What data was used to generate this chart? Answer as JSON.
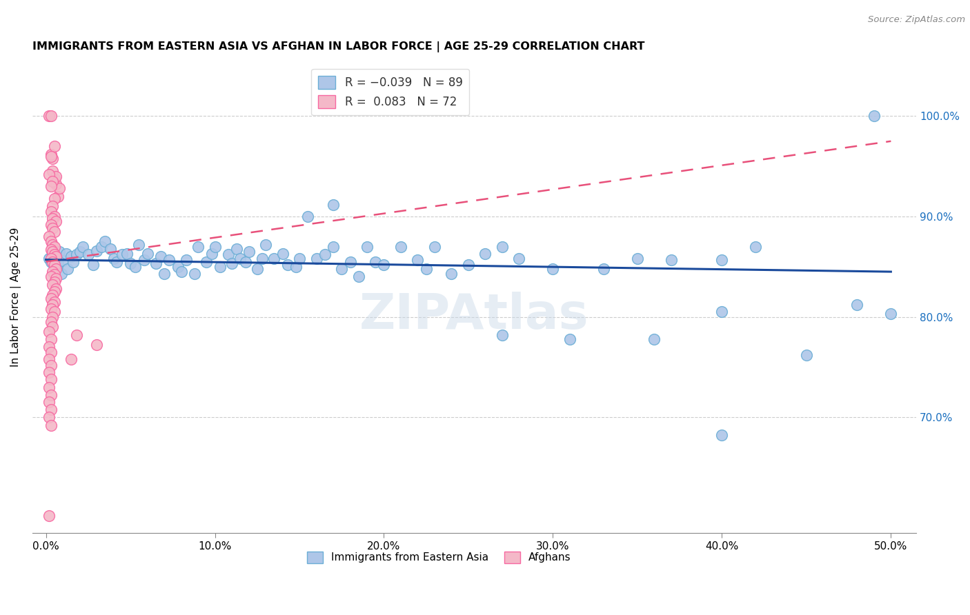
{
  "title": "IMMIGRANTS FROM EASTERN ASIA VS AFGHAN IN LABOR FORCE | AGE 25-29 CORRELATION CHART",
  "source": "Source: ZipAtlas.com",
  "ylabel": "In Labor Force | Age 25-29",
  "xlabel_ticks": [
    "0.0%",
    "10.0%",
    "20.0%",
    "30.0%",
    "40.0%",
    "50.0%"
  ],
  "xlabel_vals": [
    0.0,
    0.1,
    0.2,
    0.3,
    0.4,
    0.5
  ],
  "ylabel_ticks": [
    "70.0%",
    "80.0%",
    "90.0%",
    "100.0%"
  ],
  "ylabel_vals": [
    0.7,
    0.8,
    0.9,
    1.0
  ],
  "xlim": [
    -0.008,
    0.515
  ],
  "ylim": [
    0.585,
    1.055
  ],
  "blue_color": "#6baed6",
  "pink_color": "#f768a1",
  "blue_fill": "#aec6e8",
  "pink_fill": "#f4b8c8",
  "trend_blue_color": "#1a4a9c",
  "trend_pink_color": "#e8507a",
  "watermark": "ZIPAtlas",
  "blue_points": [
    [
      0.002,
      0.858
    ],
    [
      0.003,
      0.855
    ],
    [
      0.004,
      0.862
    ],
    [
      0.005,
      0.85
    ],
    [
      0.006,
      0.858
    ],
    [
      0.007,
      0.853
    ],
    [
      0.008,
      0.865
    ],
    [
      0.009,
      0.843
    ],
    [
      0.01,
      0.856
    ],
    [
      0.012,
      0.863
    ],
    [
      0.013,
      0.848
    ],
    [
      0.015,
      0.86
    ],
    [
      0.016,
      0.855
    ],
    [
      0.018,
      0.862
    ],
    [
      0.02,
      0.865
    ],
    [
      0.022,
      0.87
    ],
    [
      0.025,
      0.862
    ],
    [
      0.028,
      0.852
    ],
    [
      0.03,
      0.866
    ],
    [
      0.033,
      0.87
    ],
    [
      0.035,
      0.875
    ],
    [
      0.038,
      0.868
    ],
    [
      0.04,
      0.858
    ],
    [
      0.042,
      0.855
    ],
    [
      0.045,
      0.862
    ],
    [
      0.048,
      0.863
    ],
    [
      0.05,
      0.853
    ],
    [
      0.053,
      0.85
    ],
    [
      0.055,
      0.872
    ],
    [
      0.058,
      0.857
    ],
    [
      0.06,
      0.863
    ],
    [
      0.065,
      0.853
    ],
    [
      0.068,
      0.86
    ],
    [
      0.07,
      0.843
    ],
    [
      0.073,
      0.857
    ],
    [
      0.078,
      0.85
    ],
    [
      0.08,
      0.845
    ],
    [
      0.083,
      0.857
    ],
    [
      0.088,
      0.843
    ],
    [
      0.09,
      0.87
    ],
    [
      0.095,
      0.855
    ],
    [
      0.098,
      0.863
    ],
    [
      0.1,
      0.87
    ],
    [
      0.103,
      0.85
    ],
    [
      0.108,
      0.862
    ],
    [
      0.11,
      0.853
    ],
    [
      0.113,
      0.868
    ],
    [
      0.115,
      0.858
    ],
    [
      0.118,
      0.855
    ],
    [
      0.12,
      0.865
    ],
    [
      0.125,
      0.848
    ],
    [
      0.128,
      0.858
    ],
    [
      0.13,
      0.872
    ],
    [
      0.135,
      0.858
    ],
    [
      0.14,
      0.863
    ],
    [
      0.143,
      0.852
    ],
    [
      0.148,
      0.85
    ],
    [
      0.15,
      0.858
    ],
    [
      0.155,
      0.9
    ],
    [
      0.16,
      0.858
    ],
    [
      0.165,
      0.862
    ],
    [
      0.17,
      0.87
    ],
    [
      0.175,
      0.848
    ],
    [
      0.18,
      0.855
    ],
    [
      0.185,
      0.84
    ],
    [
      0.19,
      0.87
    ],
    [
      0.195,
      0.855
    ],
    [
      0.2,
      0.852
    ],
    [
      0.21,
      0.87
    ],
    [
      0.22,
      0.857
    ],
    [
      0.225,
      0.848
    ],
    [
      0.23,
      0.87
    ],
    [
      0.24,
      0.843
    ],
    [
      0.25,
      0.852
    ],
    [
      0.26,
      0.863
    ],
    [
      0.27,
      0.87
    ],
    [
      0.17,
      0.912
    ],
    [
      0.28,
      0.858
    ],
    [
      0.3,
      0.848
    ],
    [
      0.33,
      0.848
    ],
    [
      0.35,
      0.858
    ],
    [
      0.37,
      0.857
    ],
    [
      0.4,
      0.857
    ],
    [
      0.42,
      0.87
    ],
    [
      0.27,
      0.782
    ],
    [
      0.31,
      0.778
    ],
    [
      0.36,
      0.778
    ],
    [
      0.4,
      0.805
    ],
    [
      0.48,
      0.812
    ],
    [
      0.45,
      0.762
    ],
    [
      0.49,
      1.0
    ],
    [
      0.5,
      0.803
    ],
    [
      0.4,
      0.682
    ]
  ],
  "pink_points": [
    [
      0.002,
      1.0
    ],
    [
      0.003,
      1.0
    ],
    [
      0.004,
      0.958
    ],
    [
      0.005,
      0.938
    ],
    [
      0.003,
      0.962
    ],
    [
      0.005,
      0.97
    ],
    [
      0.006,
      0.932
    ],
    [
      0.007,
      0.92
    ],
    [
      0.004,
      0.945
    ],
    [
      0.006,
      0.94
    ],
    [
      0.008,
      0.928
    ],
    [
      0.003,
      0.96
    ],
    [
      0.002,
      0.942
    ],
    [
      0.004,
      0.935
    ],
    [
      0.003,
      0.93
    ],
    [
      0.005,
      0.918
    ],
    [
      0.004,
      0.91
    ],
    [
      0.003,
      0.905
    ],
    [
      0.005,
      0.9
    ],
    [
      0.004,
      0.898
    ],
    [
      0.006,
      0.895
    ],
    [
      0.003,
      0.892
    ],
    [
      0.004,
      0.888
    ],
    [
      0.005,
      0.885
    ],
    [
      0.002,
      0.88
    ],
    [
      0.003,
      0.875
    ],
    [
      0.004,
      0.872
    ],
    [
      0.005,
      0.87
    ],
    [
      0.003,
      0.867
    ],
    [
      0.004,
      0.865
    ],
    [
      0.005,
      0.862
    ],
    [
      0.006,
      0.86
    ],
    [
      0.003,
      0.858
    ],
    [
      0.004,
      0.855
    ],
    [
      0.005,
      0.852
    ],
    [
      0.006,
      0.848
    ],
    [
      0.004,
      0.845
    ],
    [
      0.005,
      0.842
    ],
    [
      0.003,
      0.84
    ],
    [
      0.006,
      0.838
    ],
    [
      0.005,
      0.835
    ],
    [
      0.004,
      0.832
    ],
    [
      0.006,
      0.828
    ],
    [
      0.005,
      0.825
    ],
    [
      0.004,
      0.822
    ],
    [
      0.003,
      0.818
    ],
    [
      0.005,
      0.815
    ],
    [
      0.004,
      0.812
    ],
    [
      0.003,
      0.808
    ],
    [
      0.005,
      0.805
    ],
    [
      0.004,
      0.8
    ],
    [
      0.003,
      0.795
    ],
    [
      0.004,
      0.79
    ],
    [
      0.002,
      0.785
    ],
    [
      0.003,
      0.778
    ],
    [
      0.002,
      0.77
    ],
    [
      0.003,
      0.765
    ],
    [
      0.002,
      0.758
    ],
    [
      0.003,
      0.752
    ],
    [
      0.002,
      0.745
    ],
    [
      0.003,
      0.738
    ],
    [
      0.002,
      0.73
    ],
    [
      0.003,
      0.722
    ],
    [
      0.002,
      0.715
    ],
    [
      0.003,
      0.708
    ],
    [
      0.002,
      0.7
    ],
    [
      0.003,
      0.692
    ],
    [
      0.018,
      0.782
    ],
    [
      0.03,
      0.772
    ],
    [
      0.015,
      0.758
    ],
    [
      0.002,
      0.602
    ]
  ]
}
